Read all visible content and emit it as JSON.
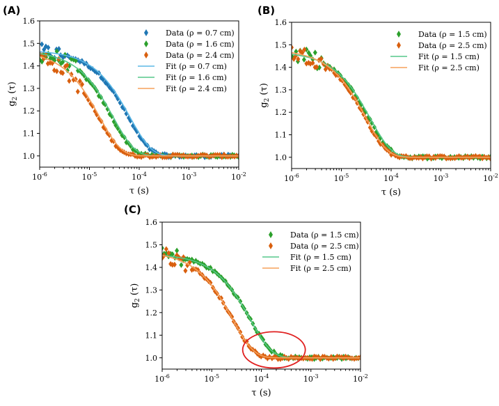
{
  "chart_data": [
    {
      "panel": "(A)",
      "type": "scatter",
      "xscale": "log",
      "xlim": [
        1e-06,
        0.01
      ],
      "ylim": [
        0.95,
        1.6
      ],
      "xticks": [
        "10-6",
        "10-5",
        "10-4",
        "10-3",
        "10-2"
      ],
      "yticks": [
        "1.0",
        "1.1",
        "1.2",
        "1.3",
        "1.4",
        "1.5",
        "1.6"
      ],
      "xlabel": "τ (s)",
      "ylabel": "g2 (τ)",
      "legend_position": "top-right",
      "series": [
        {
          "name": "Data (ρ = 0.7 cm)",
          "kind": "data",
          "color": "#1f77b4",
          "beta": 0.47,
          "tau_c": 6e-05,
          "noise_until": 3e-06
        },
        {
          "name": "Data (ρ = 1.6 cm)",
          "kind": "data",
          "color": "#2ca02c",
          "beta": 0.47,
          "tau_c": 2.8e-05,
          "noise_until": 6e-06
        },
        {
          "name": "Data (ρ = 2.4 cm)",
          "kind": "data",
          "color": "#d95f0e",
          "beta": 0.47,
          "tau_c": 1.5e-05,
          "noise_until": 8e-06
        },
        {
          "name": "Fit (ρ = 0.7 cm)",
          "kind": "fit",
          "color": "#5bb8e6",
          "beta": 0.47,
          "tau_c": 6.5e-05
        },
        {
          "name": "Fit (ρ = 1.6 cm)",
          "kind": "fit",
          "color": "#55c78a",
          "beta": 0.47,
          "tau_c": 3e-05
        },
        {
          "name": "Fit (ρ = 2.4 cm)",
          "kind": "fit",
          "color": "#f5a05a",
          "beta": 0.47,
          "tau_c": 1.6e-05
        }
      ]
    },
    {
      "panel": "(B)",
      "type": "scatter",
      "xscale": "log",
      "xlim": [
        1e-06,
        0.01
      ],
      "ylim": [
        0.95,
        1.6
      ],
      "xticks": [
        "10-6",
        "10-5",
        "10-4",
        "10-3",
        "10-2"
      ],
      "yticks": [
        "1.0",
        "1.1",
        "1.2",
        "1.3",
        "1.4",
        "1.5",
        "1.6"
      ],
      "xlabel": "τ (s)",
      "ylabel": "g2 (τ)",
      "legend_position": "top-right",
      "series": [
        {
          "name": "Data (ρ = 1.5 cm)",
          "kind": "data",
          "color": "#2ca02c",
          "beta": 0.47,
          "tau_c": 3.6e-05,
          "noise_until": 4e-06
        },
        {
          "name": "Data (ρ = 2.5 cm)",
          "kind": "data",
          "color": "#d95f0e",
          "beta": 0.48,
          "tau_c": 3e-05,
          "noise_until": 5e-06
        },
        {
          "name": "Fit (ρ = 1.5 cm)",
          "kind": "fit",
          "color": "#55c78a",
          "beta": 0.47,
          "tau_c": 3.8e-05
        },
        {
          "name": "Fit (ρ = 2.5 cm)",
          "kind": "fit",
          "color": "#f5a05a",
          "beta": 0.48,
          "tau_c": 3.1e-05
        }
      ]
    },
    {
      "panel": "(C)",
      "type": "scatter",
      "xscale": "log",
      "xlim": [
        1e-06,
        0.01
      ],
      "ylim": [
        0.95,
        1.6
      ],
      "xticks": [
        "10-6",
        "10-5",
        "10-4",
        "10-3",
        "10-2"
      ],
      "yticks": [
        "1.0",
        "1.1",
        "1.2",
        "1.3",
        "1.4",
        "1.5",
        "1.6"
      ],
      "xlabel": "τ (s)",
      "ylabel": "g2 (τ)",
      "legend_position": "top-right",
      "annotation": "red ellipse around the curve tails near τ ≈ 2×10-4 s",
      "series": [
        {
          "name": "Data (ρ = 1.5 cm)",
          "kind": "data",
          "color": "#2ca02c",
          "beta": 0.46,
          "tau_c": 6e-05,
          "noise_until": 3e-06
        },
        {
          "name": "Data (ρ = 2.5 cm)",
          "kind": "data",
          "color": "#d95f0e",
          "beta": 0.47,
          "tau_c": 2.6e-05,
          "noise_until": 4e-06
        },
        {
          "name": "Fit (ρ = 1.5 cm)",
          "kind": "fit",
          "color": "#55c78a",
          "beta": 0.46,
          "tau_c": 6e-05
        },
        {
          "name": "Fit (ρ = 2.5 cm)",
          "kind": "fit",
          "color": "#f5a05a",
          "beta": 0.47,
          "tau_c": 2.6e-05
        }
      ]
    }
  ]
}
